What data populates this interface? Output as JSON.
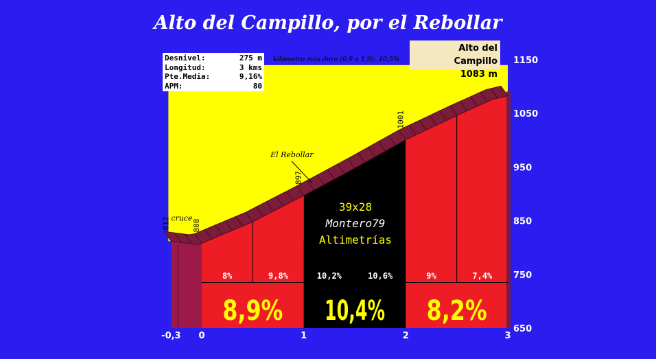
{
  "title": "Alto del Campillo, por el Rebollar",
  "stats": [
    {
      "label": "Desnivel:",
      "value": "275 m"
    },
    {
      "label": "Longitud:",
      "value": "3 kms"
    },
    {
      "label": "Pte.Media:",
      "value": "9,16%"
    },
    {
      "label": "APM:",
      "value": "80"
    }
  ],
  "hardest_km": {
    "label": "kilómetro más duro (0,9 a 1,9):",
    "value": "10,5%"
  },
  "summit": {
    "name": "Alto del Campillo",
    "altitude": "1083 m"
  },
  "watermark": {
    "line1": "39x28",
    "line2": "Montero79",
    "line3": "Altimetrías"
  },
  "colors": {
    "background": "#2b1cf0",
    "sky": "#ffff00",
    "profile": "#7a1c3a",
    "red_section": "#ee1c24",
    "black_section": "#000000",
    "big_label": "#ffff00",
    "axis_label": "#ffffff",
    "side_wall": "#9c1a4a"
  },
  "chart_data": {
    "type": "area",
    "title": "Alto del Campillo, por el Rebollar",
    "x_unit": "km",
    "xlim": [
      -0.3,
      3
    ],
    "ylim": [
      650,
      1150
    ],
    "x_ticks": [
      "-0,3",
      "0",
      "1",
      "2",
      "3"
    ],
    "x_tick_values": [
      -0.3,
      0,
      1,
      2,
      3
    ],
    "y_ticks": [
      "650",
      "750",
      "850",
      "950",
      "1050",
      "1150"
    ],
    "y_tick_values": [
      650,
      750,
      850,
      950,
      1050,
      1150
    ],
    "profile": [
      {
        "x": -0.3,
        "y": 812
      },
      {
        "x": -0.05,
        "y": 806
      },
      {
        "x": 0,
        "y": 808
      },
      {
        "x": 0.5,
        "y": 848
      },
      {
        "x": 1,
        "y": 897
      },
      {
        "x": 1.5,
        "y": 948
      },
      {
        "x": 2,
        "y": 1001
      },
      {
        "x": 2.5,
        "y": 1046
      },
      {
        "x": 2.85,
        "y": 1076
      },
      {
        "x": 3,
        "y": 1083
      }
    ],
    "altitude_labels": [
      {
        "x": -0.3,
        "y": 812,
        "text": "812"
      },
      {
        "x": 0,
        "y": 808,
        "text": "808"
      },
      {
        "x": 1,
        "y": 897,
        "text": "897"
      },
      {
        "x": 2,
        "y": 1001,
        "text": "1001"
      }
    ],
    "segments": [
      {
        "from": 0,
        "to": 0.5,
        "gradient": "8%"
      },
      {
        "from": 0.5,
        "to": 1,
        "gradient": "9,8%"
      },
      {
        "from": 1,
        "to": 1.5,
        "gradient": "10,2%"
      },
      {
        "from": 1.5,
        "to": 2,
        "gradient": "10,6%"
      },
      {
        "from": 2,
        "to": 2.5,
        "gradient": "9%"
      },
      {
        "from": 2.5,
        "to": 3,
        "gradient": "7,4%"
      }
    ],
    "km_segments": [
      {
        "from": 0,
        "to": 1,
        "gradient": "8,9%"
      },
      {
        "from": 1,
        "to": 2,
        "gradient": "10,4%"
      },
      {
        "from": 2,
        "to": 3,
        "gradient": "8,2%"
      }
    ],
    "annotations": [
      {
        "x": -0.3,
        "text": "cruce"
      },
      {
        "x": 1.05,
        "text": "El Rebollar"
      }
    ]
  }
}
